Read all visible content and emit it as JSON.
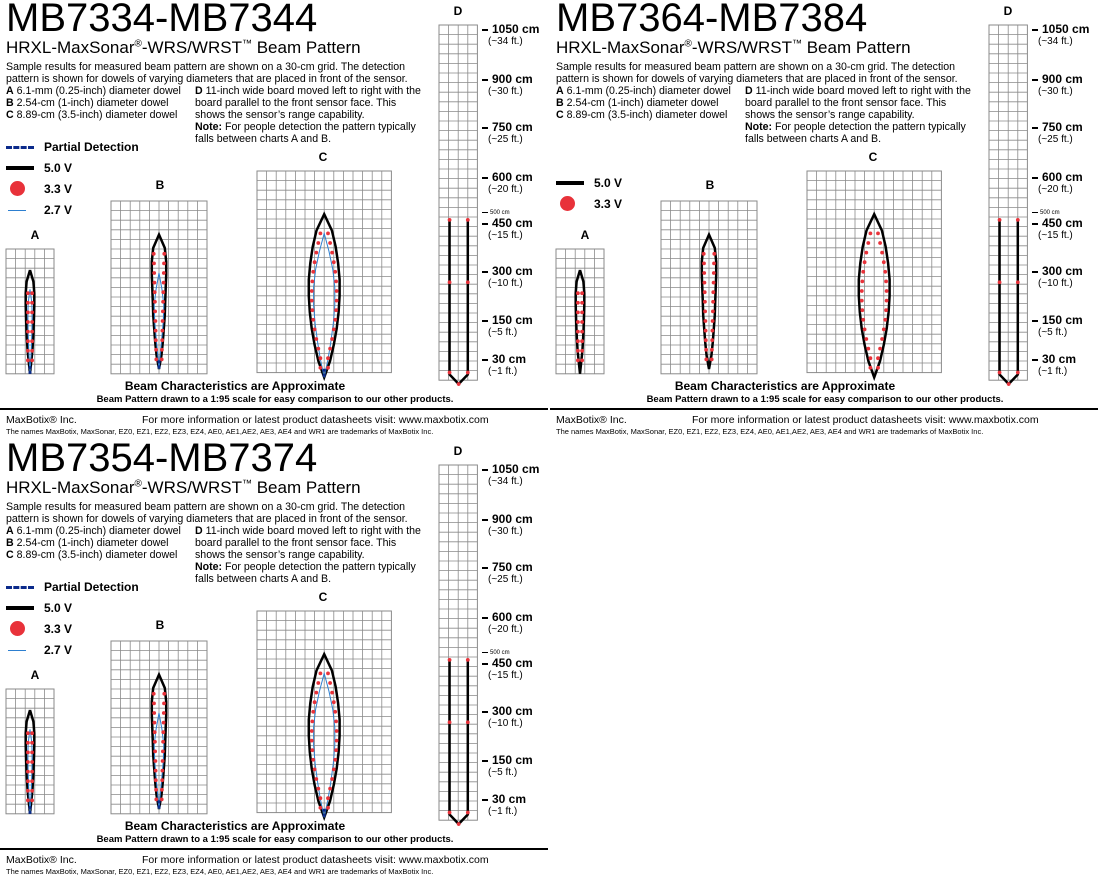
{
  "panels": [
    {
      "model": "MB7334-MB7344",
      "has_partial_detection": true,
      "has_27v": true
    },
    {
      "model": "MB7364-MB7384",
      "has_partial_detection": false,
      "has_27v": false
    },
    {
      "model": "MB7354-MB7374",
      "has_partial_detection": true,
      "has_27v": true
    }
  ],
  "common": {
    "product": "HRXL-MaxSonar",
    "reg": "®",
    "product_suffix": "-WRS/WRST",
    "tm": "™",
    "product_tail": " Beam Pattern",
    "description": "Sample results for measured beam pattern are shown on a 30-cm grid. The detection pattern is shown for dowels of varying diameters that are placed in front of the sensor.",
    "dowel_a_letter": "A",
    "dowel_a": "6.1-mm (0.25-inch) diameter dowel",
    "dowel_b_letter": "B",
    "dowel_b": "2.54-cm (1-inch) diameter dowel",
    "dowel_c_letter": "C",
    "dowel_c": "8.89-cm (3.5-inch) diameter dowel",
    "dowel_d_letter": "D",
    "dowel_d": "11-inch wide board moved left to right with the board parallel to the front sensor face. This shows the sensor’s range capability.",
    "note_label": "Note:",
    "note": "For people detection the pattern typically falls between charts A and B.",
    "legend_partial": "Partial Detection",
    "legend_50": "5.0 V",
    "legend_33": "3.3 V",
    "legend_27": "2.7 V",
    "chart_a": "A",
    "chart_b": "B",
    "chart_c": "C",
    "chart_d": "D",
    "scale": [
      {
        "cm": "1050 cm",
        "ft": "(~34 ft.)"
      },
      {
        "cm": "900 cm",
        "ft": "(~30 ft.)"
      },
      {
        "cm": "750 cm",
        "ft": "(~25 ft.)"
      },
      {
        "cm": "600 cm",
        "ft": "(~20 ft.)"
      },
      {
        "cm": "450 cm",
        "ft": "(~15 ft.)"
      },
      {
        "cm": "300 cm",
        "ft": "(~10 ft.)"
      },
      {
        "cm": "150 cm",
        "ft": "(~5 ft.)"
      },
      {
        "cm": "30 cm",
        "ft": "(~1 ft.)"
      }
    ],
    "tick_500": "500 cm",
    "approx": "Beam Characteristics are Approximate",
    "scale_note": "Beam Pattern drawn to a 1:95 scale for easy comparison to our other products.",
    "company": "MaxBotix® Inc.",
    "website": "For more information or latest product datasheets visit:  www.maxbotix.com",
    "trademarks": "The names MaxBotix, MaxSonar, EZ0, EZ1, EZ2, EZ3, EZ4, AE0, AE1,AE2, AE3, AE4 and WR1 are trademarks of MaxBotix Inc."
  },
  "colors": {
    "grid": "#8a8a8a",
    "beam_50": "#000000",
    "dot_33": "#e8323a",
    "line_27": "#2d7fd0",
    "partial": "#0b2a8a"
  }
}
